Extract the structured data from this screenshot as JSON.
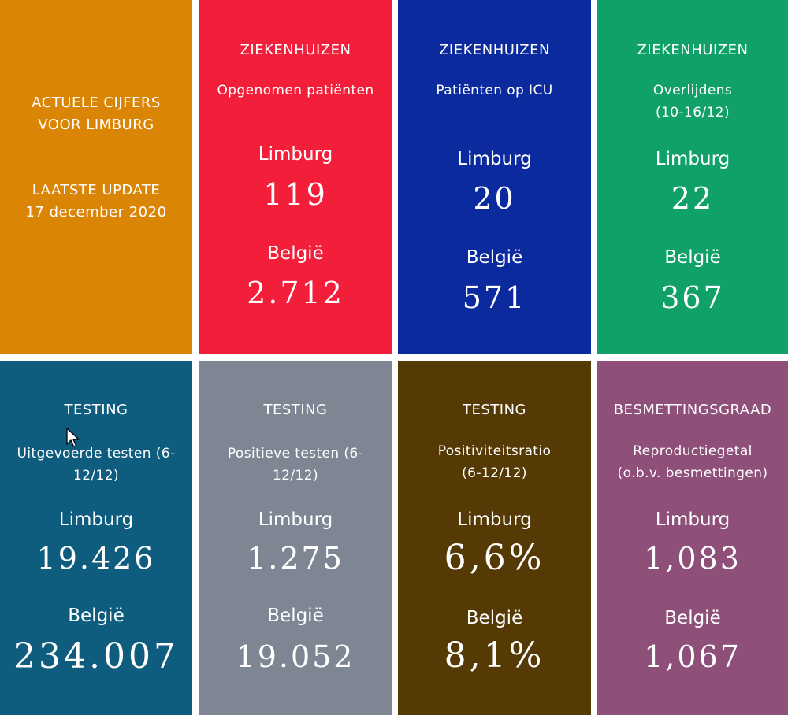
{
  "colors": {
    "orange": "#DA8505",
    "red": "#F31E3A",
    "blue": "#0B2A9E",
    "green": "#10A168",
    "teal": "#0E5C7E",
    "gray": "#7E8593",
    "brown": "#553A05",
    "purple": "#8E4F79"
  },
  "intro": {
    "line1": "ACTUELE CIJFERS",
    "line2": "VOOR LIMBURG",
    "line3": "LAATSTE UPDATE",
    "line4": "17 december 2020"
  },
  "tiles": [
    {
      "category": "ZIEKENHUIZEN",
      "subtitle_l1": "Opgenomen patiënten",
      "subtitle_l2": "",
      "region1": "Limburg",
      "value1": "119",
      "region2": "België",
      "value2": "2.712"
    },
    {
      "category": "ZIEKENHUIZEN",
      "subtitle_l1": "Patiënten op ICU",
      "subtitle_l2": "",
      "region1": "Limburg",
      "value1": "20",
      "region2": "België",
      "value2": "571"
    },
    {
      "category": "ZIEKENHUIZEN",
      "subtitle_l1": "Overlijdens",
      "subtitle_l2": "(10-16/12)",
      "region1": "Limburg",
      "value1": "22",
      "region2": "België",
      "value2": "367"
    },
    {
      "category": "TESTING",
      "subtitle_l1": "Uitgevoerde testen (6-",
      "subtitle_l2": "12/12)",
      "region1": "Limburg",
      "value1": "19.426",
      "region2": "België",
      "value2": "234.007"
    },
    {
      "category": "TESTING",
      "subtitle_l1": "Positieve testen (6-",
      "subtitle_l2": "12/12)",
      "region1": "Limburg",
      "value1": "1.275",
      "region2": "België",
      "value2": "19.052"
    },
    {
      "category": "TESTING",
      "subtitle_l1": "Positiviteitsratio",
      "subtitle_l2": "(6-12/12)",
      "region1": "Limburg",
      "value1": "6,6%",
      "region2": "België",
      "value2": "8,1%"
    },
    {
      "category": "BESMETTINGSGRAAD",
      "subtitle_l1": "Reproductiegetal",
      "subtitle_l2": "(o.b.v. besmettingen)",
      "region1": "Limburg",
      "value1": "1,083",
      "region2": "België",
      "value2": "1,067"
    }
  ]
}
